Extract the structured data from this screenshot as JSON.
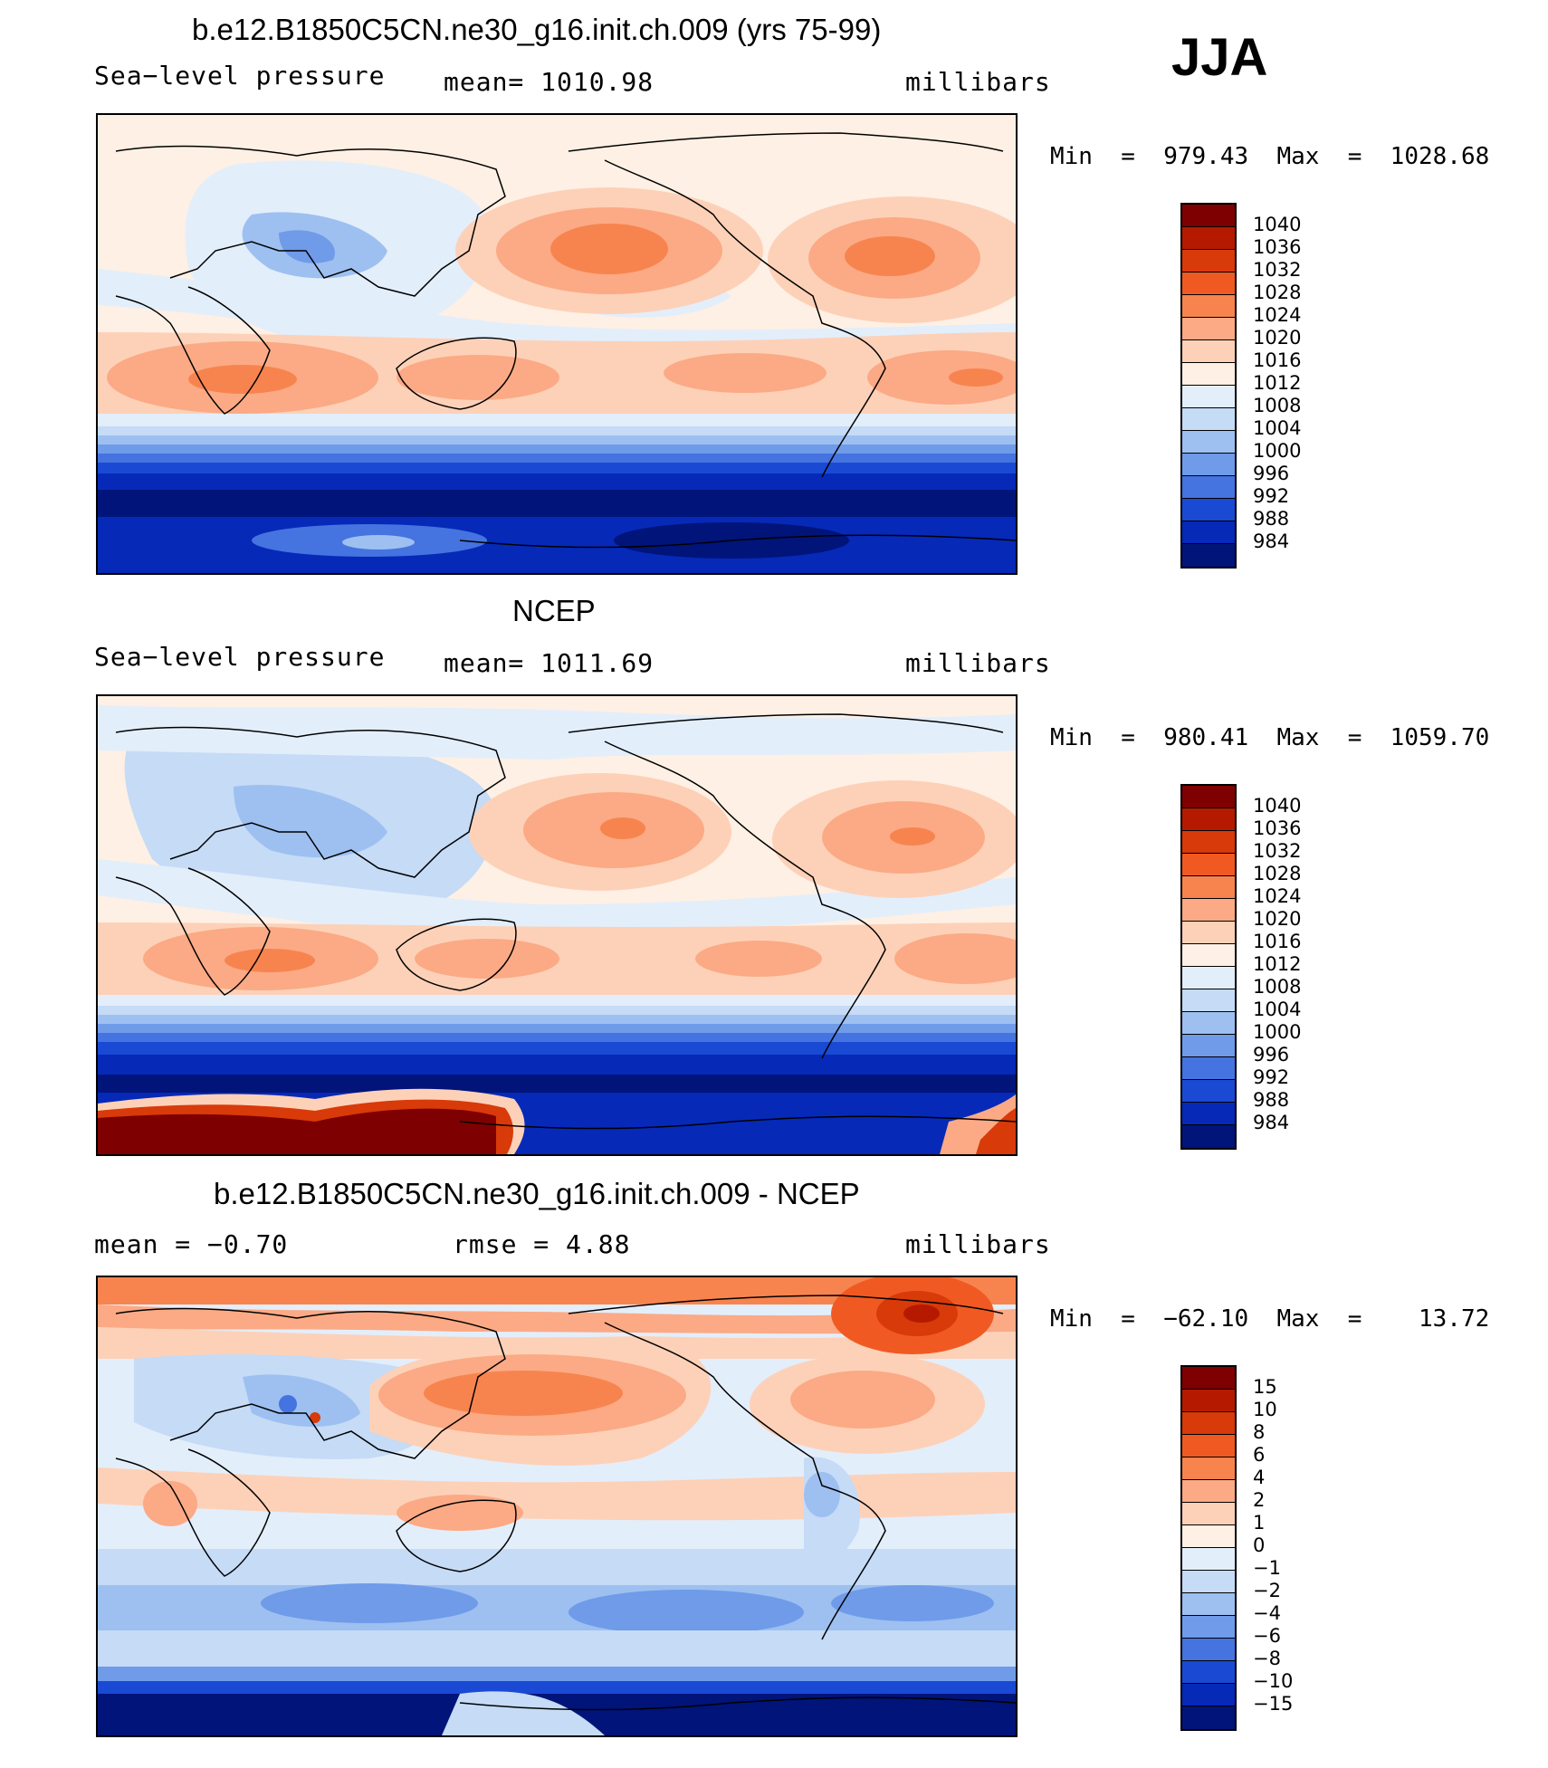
{
  "season": "JJA",
  "panels": [
    {
      "title": "b.e12.B1850C5CN.ne30_g16.init.ch.009 (yrs 75-99)",
      "left": "Sea−level pressure",
      "center": "mean=  1010.98",
      "right": "millibars",
      "minmax": "Min  =  979.43  Max  =  1028.68",
      "colorbar_levels": [
        "1040",
        "1036",
        "1032",
        "1028",
        "1024",
        "1020",
        "1016",
        "1012",
        "1008",
        "1004",
        "1000",
        "996",
        "992",
        "988",
        "984"
      ]
    },
    {
      "title": "NCEP",
      "left": "Sea−level pressure",
      "center": "mean=  1011.69",
      "right": "millibars",
      "minmax": "Min  =  980.41  Max  =  1059.70",
      "colorbar_levels": [
        "1040",
        "1036",
        "1032",
        "1028",
        "1024",
        "1020",
        "1016",
        "1012",
        "1008",
        "1004",
        "1000",
        "996",
        "992",
        "988",
        "984"
      ]
    },
    {
      "title": "b.e12.B1850C5CN.ne30_g16.init.ch.009 - NCEP",
      "left": "mean  =    −0.70",
      "center": "rmse  =     4.88",
      "right": "millibars",
      "minmax": "Min  =  −62.10  Max  =    13.72",
      "colorbar_levels": [
        "15",
        "10",
        "8",
        "6",
        "4",
        "2",
        "1",
        "0",
        "−1",
        "−2",
        "−4",
        "−6",
        "−8",
        "−10",
        "−15"
      ]
    }
  ],
  "colors": {
    "palette": [
      "#7f0000",
      "#b51a00",
      "#d83a0a",
      "#f05a22",
      "#f7844f",
      "#fbaa85",
      "#fdd1b8",
      "#fef0e4",
      "#e3eefb",
      "#c5dbf6",
      "#9dc0f1",
      "#6f9be9",
      "#4573e0",
      "#1a4ad4",
      "#0629b8",
      "#00147a"
    ]
  }
}
